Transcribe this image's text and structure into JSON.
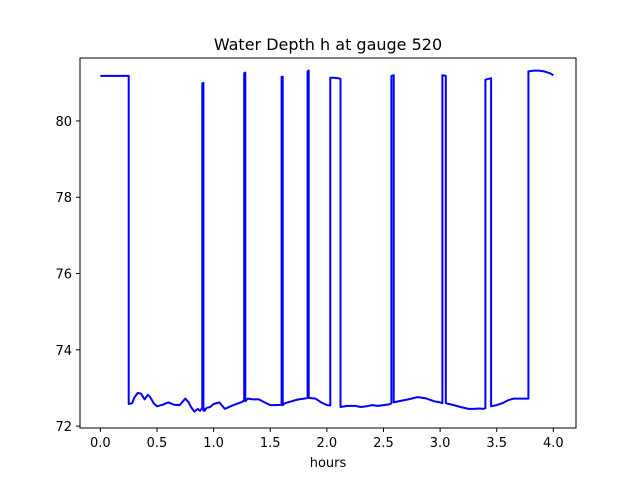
{
  "chart_data": {
    "type": "line",
    "title": "Water Depth h at gauge 520",
    "xlabel": "hours",
    "ylabel": "",
    "xlim": [
      -0.18,
      4.2
    ],
    "ylim": [
      71.95,
      81.65
    ],
    "xticks": [
      0.0,
      0.5,
      1.0,
      1.5,
      2.0,
      2.5,
      3.0,
      3.5,
      4.0
    ],
    "xtick_labels": [
      "0.0",
      "0.5",
      "1.0",
      "1.5",
      "2.0",
      "2.5",
      "3.0",
      "3.5",
      "4.0"
    ],
    "yticks": [
      72,
      74,
      76,
      78,
      80
    ],
    "ytick_labels": [
      "72",
      "74",
      "76",
      "78",
      "80"
    ],
    "grid": false,
    "line_color": "#0000ff",
    "series": [
      {
        "x": [
          0.0,
          0.1,
          0.2,
          0.25,
          0.25,
          0.28,
          0.3,
          0.33,
          0.36,
          0.39,
          0.42,
          0.44,
          0.47,
          0.5,
          0.55,
          0.6,
          0.65,
          0.7,
          0.75,
          0.78,
          0.8,
          0.83,
          0.86,
          0.88,
          0.9,
          0.9,
          0.91,
          0.91,
          0.92,
          0.92,
          0.94,
          0.97,
          1.0,
          1.05,
          1.1,
          1.15,
          1.2,
          1.25,
          1.27,
          1.27,
          1.28,
          1.28,
          1.3,
          1.35,
          1.4,
          1.45,
          1.5,
          1.55,
          1.6,
          1.6,
          1.61,
          1.61,
          1.63,
          1.7,
          1.75,
          1.8,
          1.83,
          1.83,
          1.84,
          1.84,
          1.9,
          1.95,
          2.0,
          2.03,
          2.03,
          2.06,
          2.1,
          2.12,
          2.12,
          2.18,
          2.25,
          2.3,
          2.35,
          2.4,
          2.45,
          2.5,
          2.55,
          2.57,
          2.57,
          2.59,
          2.59,
          2.65,
          2.72,
          2.8,
          2.87,
          2.95,
          3.0,
          3.02,
          3.02,
          3.05,
          3.05,
          3.12,
          3.18,
          3.25,
          3.3,
          3.35,
          3.38,
          3.4,
          3.4,
          3.45,
          3.45,
          3.5,
          3.55,
          3.6,
          3.65,
          3.7,
          3.75,
          3.78,
          3.78,
          3.83,
          3.87,
          3.92,
          3.97,
          4.0
        ],
        "y": [
          81.18,
          81.18,
          81.18,
          81.18,
          72.58,
          72.6,
          72.75,
          72.87,
          72.85,
          72.7,
          72.82,
          72.76,
          72.6,
          72.52,
          72.56,
          72.62,
          72.56,
          72.55,
          72.72,
          72.62,
          72.5,
          72.38,
          72.45,
          72.4,
          72.48,
          80.98,
          81.0,
          72.4,
          72.45,
          72.4,
          72.48,
          72.5,
          72.58,
          72.62,
          72.45,
          72.52,
          72.58,
          72.63,
          72.68,
          81.25,
          81.27,
          72.65,
          72.72,
          72.7,
          72.7,
          72.62,
          72.55,
          72.55,
          72.56,
          81.16,
          81.16,
          72.55,
          72.6,
          72.66,
          72.7,
          72.72,
          72.74,
          81.3,
          81.32,
          72.74,
          72.72,
          72.62,
          72.55,
          72.54,
          81.13,
          81.13,
          81.12,
          81.1,
          72.5,
          72.53,
          72.53,
          72.5,
          72.52,
          72.55,
          72.53,
          72.55,
          72.57,
          72.6,
          81.18,
          81.2,
          72.62,
          72.66,
          72.7,
          72.76,
          72.73,
          72.65,
          72.62,
          72.6,
          81.2,
          81.18,
          72.6,
          72.55,
          72.5,
          72.45,
          72.45,
          72.46,
          72.45,
          72.47,
          81.08,
          81.12,
          72.52,
          72.55,
          72.6,
          72.68,
          72.72,
          72.72,
          72.72,
          72.72,
          81.3,
          81.32,
          81.32,
          81.3,
          81.25,
          81.2
        ]
      }
    ]
  }
}
